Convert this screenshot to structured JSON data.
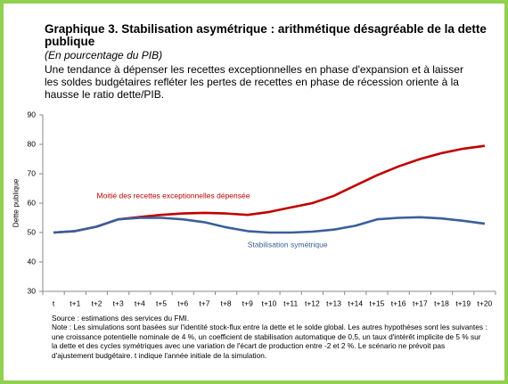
{
  "chart_data": {
    "type": "line",
    "title": "Graphique 3. Stabilisation asymétrique : arithmétique désagréable de la dette publique",
    "subtitle": "(En pourcentage du PIB)",
    "description": "Une tendance à dépenser les recettes exceptionnelles en phase d'expansion et à laisser les soldes budgétaires refléter les pertes de recettes en phase de récession oriente à la hausse le ratio dette/PIB.",
    "y_label": "Dette publique",
    "categories": [
      "t",
      "t+1",
      "t+2",
      "t+3",
      "t+4",
      "t+5",
      "t+6",
      "t+7",
      "t+8",
      "t+9",
      "t+10",
      "t+11",
      "t+12",
      "t+13",
      "t+14",
      "t+15",
      "t+16",
      "t+17",
      "t+18",
      "t+19",
      "t+20"
    ],
    "series": [
      {
        "name": "Moitié des recettes exceptionnelles dépensée",
        "color": "#c00000",
        "values": [
          50,
          50.5,
          52,
          54.5,
          55.3,
          56,
          56.5,
          56.7,
          56.5,
          56,
          57,
          58.5,
          60,
          62.5,
          66,
          69.5,
          72.5,
          75,
          77,
          78.5,
          79.5
        ]
      },
      {
        "name": "Stabilisation symétrique",
        "color": "#3a5f9a",
        "values": [
          50,
          50.5,
          52,
          54.5,
          55,
          55,
          54.5,
          53.5,
          51.8,
          50.5,
          50,
          50,
          50.3,
          51,
          52.3,
          54.5,
          55,
          55.2,
          54.8,
          54,
          53
        ]
      }
    ],
    "ylim": [
      30,
      90
    ],
    "yticks": [
      30,
      40,
      50,
      60,
      70,
      80,
      90
    ],
    "grid": false,
    "source": "Source : estimations des services du FMI.",
    "note": "Note : Les simulations sont basées sur l'identité stock-flux entre la dette et le solde global. Les autres hypothèses sont les suivantes : une croissance potentielle nominale de 4 %, un coefficient de stabilisation automatique de 0,5, un taux d'intérêt implicite de 5 % sur la dette et des cycles symétriques avec une variation de l'écart de production entre -2 et 2 %. Le scénario ne prévoit pas d'ajustement budgétaire. t indique l'année initiale de la simulation."
  }
}
